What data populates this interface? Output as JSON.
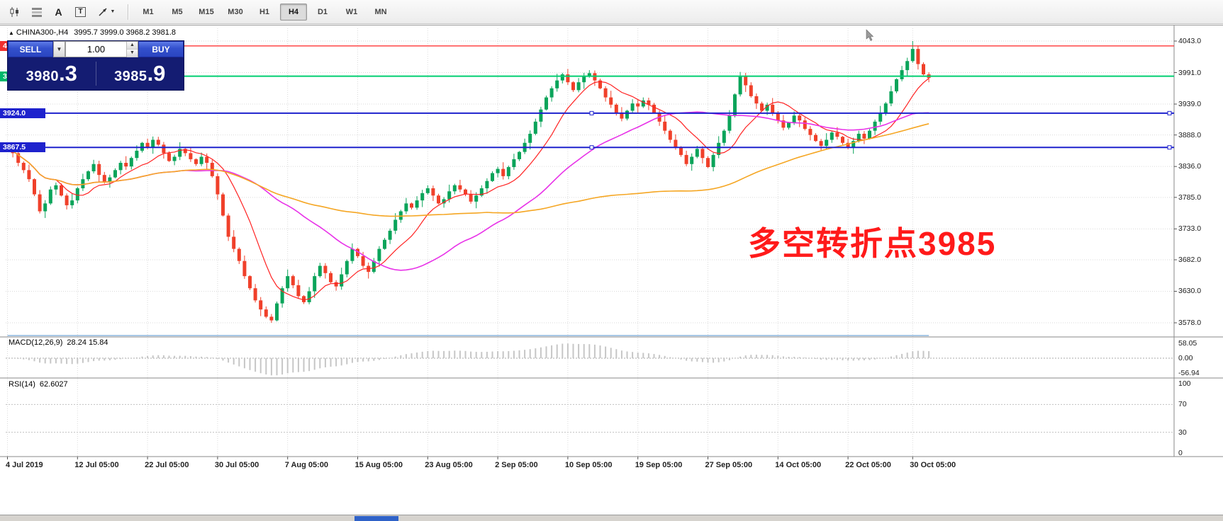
{
  "toolbar": {
    "icon_buttons": [
      {
        "name": "candlestick-chart-button",
        "icon": "candlestick-chart-icon"
      },
      {
        "name": "indicator-list-button",
        "icon": "grid-icon"
      },
      {
        "name": "text-label-button",
        "icon": "text-a-icon",
        "glyph": "A"
      },
      {
        "name": "text-box-button",
        "icon": "text-box-icon",
        "glyph": "T"
      },
      {
        "name": "arrow-tool-button",
        "icon": "arrow-tool-icon"
      }
    ],
    "timeframes": [
      {
        "label": "M1"
      },
      {
        "label": "M5"
      },
      {
        "label": "M15"
      },
      {
        "label": "M30"
      },
      {
        "label": "H1"
      },
      {
        "label": "H4",
        "active": true
      },
      {
        "label": "D1"
      },
      {
        "label": "W1"
      },
      {
        "label": "MN"
      }
    ]
  },
  "chart_header": {
    "triangle": "▲",
    "symbol": "CHINA300-,H4",
    "ohlc": "3995.7 3999.0 3968.2 3981.8"
  },
  "trade_panel": {
    "sell_label": "SELL",
    "buy_label": "BUY",
    "volume": "1.00",
    "sell_price_main": "3980",
    "sell_price_frac": ".3",
    "buy_price_main": "3985",
    "buy_price_frac": ".9"
  },
  "annotation": {
    "text": "多空转折点3985",
    "color": "#ff1a1a"
  },
  "price_axis": {
    "values": [
      4043.0,
      3991.0,
      3939.0,
      3888.0,
      3836.0,
      3785.0,
      3733.0,
      3682.0,
      3630.0,
      3578.0
    ],
    "badges": [
      {
        "text": "4035.0",
        "value": 4035.0,
        "color": "#f03030"
      },
      {
        "text": "3985.0",
        "value": 3985.0,
        "color": "#00b86b"
      },
      {
        "text": "3924.0",
        "value": 3924.0,
        "color": "#1e22cd"
      },
      {
        "text": "3867.5",
        "value": 3867.5,
        "color": "#1e22cd"
      }
    ]
  },
  "horizontal_lines": [
    {
      "price": 4035.0,
      "color": "#ff2222",
      "width": 1.3,
      "handles": false
    },
    {
      "price": 3985.0,
      "color": "#00cf70",
      "width": 2,
      "handles": false
    },
    {
      "price": 3924.0,
      "color": "#1e22cd",
      "width": 2,
      "handles": true
    },
    {
      "price": 3867.5,
      "color": "#1e22cd",
      "width": 2,
      "handles": true
    }
  ],
  "time_axis": {
    "labels": [
      "4 Jul 2019",
      "12 Jul 05:00",
      "22 Jul 05:00",
      "30 Jul 05:00",
      "7 Aug 05:00",
      "15 Aug 05:00",
      "23 Aug 05:00",
      "2 Sep 05:00",
      "10 Sep 05:00",
      "19 Sep 05:00",
      "27 Sep 05:00",
      "14 Oct 05:00",
      "22 Oct 05:00",
      "30 Oct 05:00"
    ],
    "indices": [
      0,
      13,
      26,
      39,
      52,
      65,
      78,
      91,
      104,
      117,
      130,
      143,
      156,
      168
    ]
  },
  "chart_data": {
    "type": "candlestick",
    "symbol": "CHINA300-",
    "timeframe": "H4",
    "title": "CHINA300- H4 candlestick chart with MACD and RSI",
    "ylim": [
      3578.0,
      4043.0
    ],
    "up_color": "#0aa45a",
    "down_color": "#f0402a",
    "first_open": 3872,
    "closes": [
      3865,
      3858,
      3842,
      3830,
      3815,
      3790,
      3762,
      3775,
      3798,
      3805,
      3788,
      3772,
      3780,
      3800,
      3815,
      3828,
      3840,
      3822,
      3810,
      3818,
      3830,
      3842,
      3836,
      3850,
      3862,
      3875,
      3868,
      3880,
      3872,
      3858,
      3845,
      3852,
      3865,
      3858,
      3848,
      3840,
      3852,
      3842,
      3820,
      3790,
      3755,
      3720,
      3700,
      3680,
      3655,
      3635,
      3615,
      3600,
      3588,
      3582,
      3610,
      3635,
      3655,
      3640,
      3622,
      3612,
      3630,
      3655,
      3672,
      3660,
      3645,
      3638,
      3658,
      3680,
      3700,
      3688,
      3672,
      3662,
      3680,
      3700,
      3715,
      3730,
      3748,
      3762,
      3775,
      3768,
      3780,
      3792,
      3800,
      3788,
      3775,
      3782,
      3795,
      3805,
      3798,
      3790,
      3778,
      3788,
      3800,
      3812,
      3825,
      3832,
      3820,
      3835,
      3848,
      3860,
      3875,
      3890,
      3910,
      3930,
      3950,
      3965,
      3978,
      3988,
      3975,
      3962,
      3975,
      3985,
      3990,
      3978,
      3965,
      3950,
      3938,
      3925,
      3915,
      3928,
      3940,
      3935,
      3945,
      3938,
      3925,
      3910,
      3895,
      3880,
      3868,
      3855,
      3840,
      3852,
      3865,
      3850,
      3835,
      3855,
      3875,
      3895,
      3920,
      3955,
      3985,
      3970,
      3952,
      3940,
      3928,
      3938,
      3925,
      3912,
      3900,
      3908,
      3920,
      3912,
      3898,
      3888,
      3878,
      3870,
      3880,
      3892,
      3885,
      3875,
      3868,
      3878,
      3890,
      3882,
      3895,
      3910,
      3925,
      3940,
      3960,
      3980,
      3995,
      4010,
      4030,
      4005,
      3988,
      3982
    ],
    "extremes": {
      "max_high": 4043.0,
      "max_index": 168,
      "min_low": 3578.0,
      "min_index": 49
    },
    "moving_averages": [
      {
        "period": 10,
        "color": "#ff2222"
      },
      {
        "period": 34,
        "color": "#e832e8"
      },
      {
        "period": 90,
        "color": "#f5a623"
      }
    ],
    "indicators": {
      "macd": {
        "label": "MACD(12,26,9)",
        "values_text": "28.24 15.84",
        "fast": 12,
        "slow": 26,
        "signal": 9,
        "axis": [
          {
            "text": "58.05",
            "value": 58.05
          },
          {
            "text": "0.00",
            "value": 0
          },
          {
            "text": "-56.94",
            "value": -56.94
          }
        ],
        "histogram_color": "#c6c6c6",
        "signal_color": "#ff3333"
      },
      "rsi": {
        "label": "RSI(14)",
        "value_text": "62.6027",
        "period": 14,
        "axis": [
          {
            "text": "100",
            "value": 100
          },
          {
            "text": "70",
            "value": 70
          },
          {
            "text": "30",
            "value": 30
          },
          {
            "text": "0",
            "value": 0
          }
        ],
        "line_color": "#4f8fce",
        "levels": [
          70,
          30
        ]
      }
    }
  }
}
